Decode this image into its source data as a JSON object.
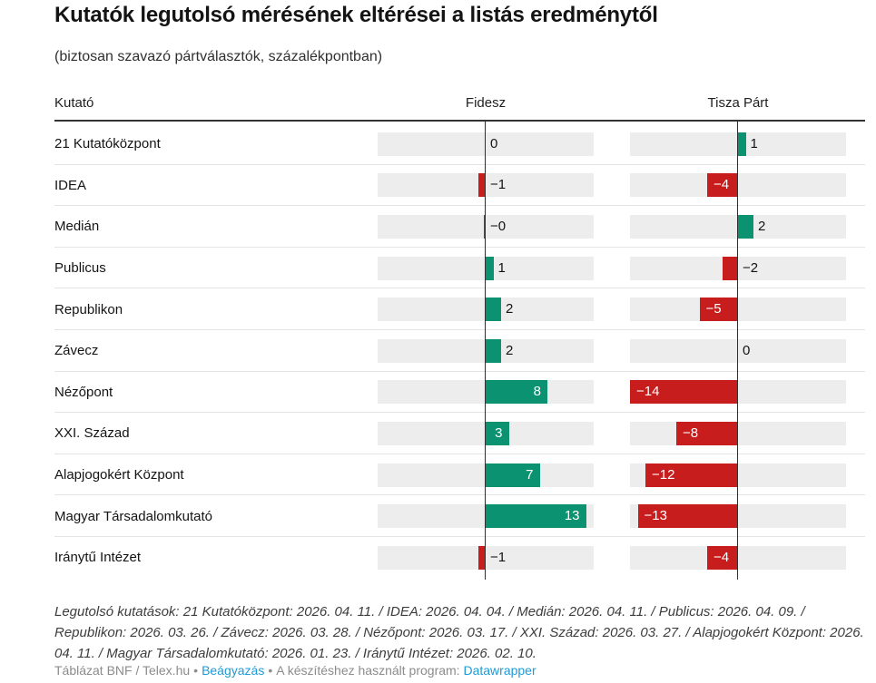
{
  "title": "Kutatók legutolsó mérésének eltérései a listás eredménytől",
  "subtitle": "(biztosan szavazó pártválasztók, százalékpontban)",
  "header": {
    "col_kutato": "Kutató",
    "col_fidesz": "Fidesz",
    "col_tisza": "Tisza Párt"
  },
  "chart_data": {
    "type": "bar",
    "variant": "diverging-split-bars",
    "categories": [
      "21 Kutatóközpont",
      "IDEA",
      "Medián",
      "Publicus",
      "Republikon",
      "Závecz",
      "Nézőpont",
      "XXI. Század",
      "Alapjogokért Központ",
      "Magyar Társadalomkutató",
      "Iránytű Intézet"
    ],
    "series": [
      {
        "name": "Fidesz",
        "values": [
          0,
          -1,
          -0.2,
          1,
          2,
          2,
          8,
          3,
          7,
          13,
          -1
        ],
        "labels": [
          "0",
          "−1",
          "−0",
          "1",
          "2",
          "2",
          "8",
          "3",
          "7",
          "13",
          "−1"
        ]
      },
      {
        "name": "Tisza Párt",
        "values": [
          1,
          -4,
          2,
          -2,
          -5,
          0,
          -14,
          -8,
          -12,
          -13,
          -4
        ],
        "labels": [
          "1",
          "−4",
          "2",
          "−2",
          "−5",
          "0",
          "−14",
          "−8",
          "−12",
          "−13",
          "−4"
        ]
      }
    ],
    "xlim": [
      -14,
      14
    ],
    "grid": "zero-axis-only",
    "legend_position": "column-headers",
    "colors": {
      "positive": "#0b9271",
      "negative": "#c71e1d",
      "track": "#ededed",
      "axis": "#2f2f2f",
      "label_inside": "#ffffff",
      "label_outside": "#141414"
    },
    "inside_label_threshold": 3
  },
  "footnote": "Legutolsó kutatások: 21 Kutatóközpont: 2026. 04. 11. / IDEA: 2026. 04. 04. / Medián: 2026. 04. 11. / Publicus: 2026. 04. 09. / Republikon: 2026. 03. 26. / Závecz: 2026. 03. 28. / Nézőpont: 2026. 03. 17. / XXI. Század: 2026. 03. 27. / Alapjogokért Központ: 2026. 04. 11. / Magyar Társadalomkutató: 2026. 01. 23. / Iránytű Intézet: 2026. 02. 10.",
  "attribution": {
    "source": "Táblázat BNF / Telex.hu",
    "separator": "•",
    "embed_label": "Beágyazás",
    "tool_prefix": "A készítéshez használt program:",
    "tool_label": "Datawrapper",
    "link_color": "#1e9bd6"
  }
}
